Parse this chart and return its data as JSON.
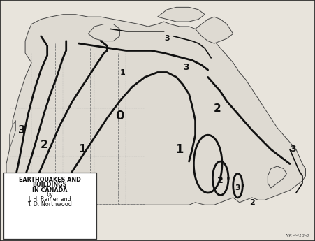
{
  "text_box_lines": [
    "EARTHQUAKES AND",
    "BUILDINGS",
    "IN CANADA",
    "by",
    "J. H. Rainer and",
    "T. D. Northwood"
  ],
  "ref_number": "NR 4413-8",
  "background_color": "#e8e4dc",
  "map_bg": "#e8e4dc",
  "border_color": "#222222",
  "contour_color": "#111111",
  "coast_color": "#444444",
  "prov_color": "#777777",
  "figsize": [
    4.51,
    3.45
  ],
  "dpi": 100
}
